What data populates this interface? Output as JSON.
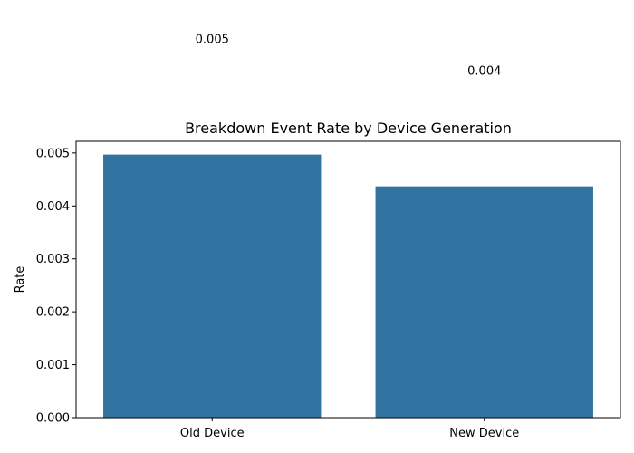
{
  "chart_data": {
    "type": "bar",
    "title": "Breakdown Event Rate by Device Generation",
    "xlabel": "",
    "ylabel": "Rate",
    "categories": [
      "Old Device",
      "New Device"
    ],
    "values": [
      0.00497,
      0.00437
    ],
    "data_labels": [
      "0.005",
      "0.004"
    ],
    "ylim": [
      0,
      0.00522
    ],
    "yticks": [
      0.0,
      0.001,
      0.002,
      0.003,
      0.004,
      0.005
    ],
    "ytick_labels": [
      "0.000",
      "0.001",
      "0.002",
      "0.003",
      "0.004",
      "0.005"
    ],
    "bar_color": "#3274a1",
    "grid": false,
    "legend": "none"
  }
}
